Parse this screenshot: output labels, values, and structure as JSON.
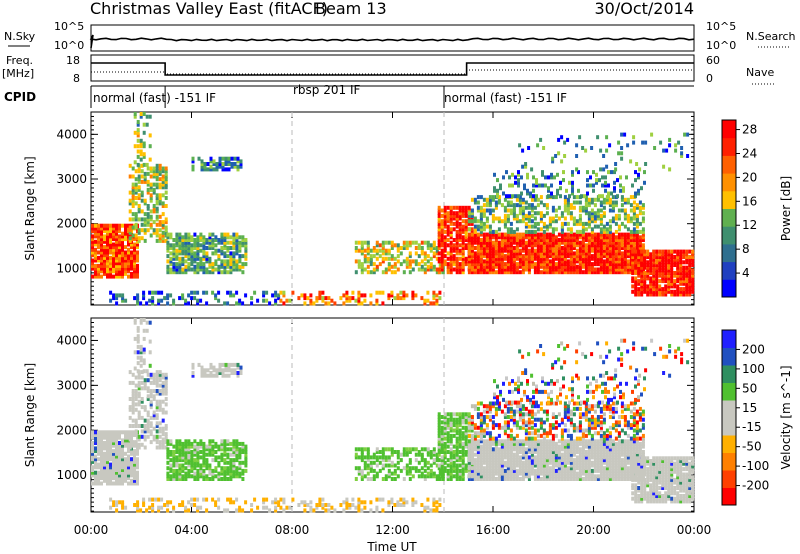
{
  "header": {
    "title": "Christmas Valley East (fitACF)",
    "beam": "Beam 13",
    "date": "30/Oct/2014"
  },
  "panels": {
    "nsky": {
      "label": "N.Sky",
      "ticks": [
        "10^5",
        "10^0"
      ],
      "right_label": "N.Search",
      "right_ticks": [
        "10^5",
        "10^0"
      ]
    },
    "freq": {
      "label_top": "Freq.",
      "label_bottom": "[MHz]",
      "ticks": [
        "18",
        "8"
      ],
      "right_label": "Nave",
      "right_ticks": [
        "60",
        "0"
      ]
    },
    "cpid": {
      "label": "CPID",
      "modes": [
        "normal (fast) -151 IF",
        "rbsp 201 IF",
        "normal (fast) -151 IF"
      ]
    }
  },
  "colors": {
    "power_scale": [
      "#0000ff",
      "#2060b0",
      "#3f8f6f",
      "#5cb050",
      "#9fd040",
      "#ffc000",
      "#ff8000",
      "#ff4000",
      "#ff0000"
    ],
    "velocity_scale": [
      "#2020ff",
      "#2050c0",
      "#2f8f60",
      "#50c030",
      "#c0c0b0",
      "#c8c8c8",
      "#ffb000",
      "#ff8000",
      "#ff4000",
      "#ff0000"
    ]
  },
  "chart_data": [
    {
      "type": "heatmap",
      "name": "power",
      "xlabel": "",
      "ylabel": "Slant Range [km]",
      "yticks": [
        "1000",
        "2000",
        "3000",
        "4000"
      ],
      "ylim": [
        180,
        4500
      ],
      "xlim_hours": [
        0,
        24
      ],
      "colorbar": {
        "label": "Power [dB]",
        "ticks": [
          "4",
          "8",
          "12",
          "16",
          "20",
          "24",
          "28"
        ],
        "range": [
          0,
          30
        ]
      }
    },
    {
      "type": "heatmap",
      "name": "velocity",
      "xlabel": "Time UT",
      "ylabel": "Slant Range [km]",
      "yticks": [
        "1000",
        "2000",
        "3000",
        "4000"
      ],
      "ylim": [
        180,
        4500
      ],
      "xlim_hours": [
        0,
        24
      ],
      "xticks": [
        "00:00",
        "04:00",
        "08:00",
        "12:00",
        "16:00",
        "20:00",
        "00:00"
      ],
      "colorbar": {
        "label": "Velocity [m s^-1]",
        "ticks": [
          "200",
          "100",
          "50",
          "15",
          "-15",
          "-50",
          "-100",
          "-200"
        ],
        "range": [
          -250,
          250
        ]
      }
    }
  ]
}
